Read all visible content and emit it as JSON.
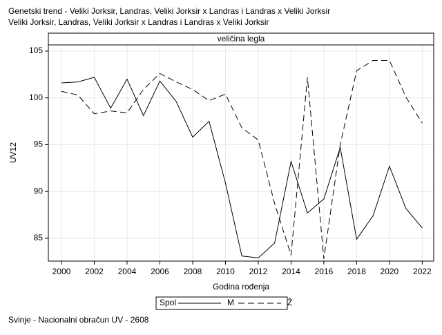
{
  "chart_data": {
    "type": "line",
    "title_lines": [
      "Genetski trend - Veliki Jorksir, Landras, Veliki Jorksir x Landras i Landras x Veliki Jorksir",
      "Veliki Jorksir, Landras, Veliki Jorksir x Landras i Landras x Veliki Jorksir"
    ],
    "panel_label": "veličina legla",
    "x_label": "Godina rođenja",
    "y_label": "UV12",
    "x": [
      2000,
      2001,
      2002,
      2003,
      2004,
      2005,
      2006,
      2007,
      2008,
      2009,
      2010,
      2011,
      2012,
      2013,
      2014,
      2015,
      2016,
      2017,
      2018,
      2019,
      2020,
      2021,
      2022
    ],
    "series": [
      {
        "name": "M",
        "color": "#000000",
        "line_style": "solid",
        "values": [
          101.6,
          101.7,
          102.2,
          98.9,
          102.0,
          98.1,
          101.8,
          99.6,
          95.8,
          97.5,
          90.9,
          83.1,
          82.9,
          84.5,
          93.2,
          87.7,
          89.2,
          94.7,
          84.9,
          87.4,
          92.7,
          88.2,
          86.1
        ]
      },
      {
        "name": "Ž",
        "color": "#000000",
        "line_style": "dashed",
        "values": [
          100.7,
          100.3,
          98.3,
          98.6,
          98.4,
          100.9,
          102.6,
          101.7,
          100.9,
          99.7,
          100.4,
          96.8,
          95.5,
          88.7,
          83.2,
          102.2,
          82.8,
          95.0,
          102.9,
          104.0,
          104.0,
          100.1,
          97.3
        ]
      }
    ],
    "legend_title": "Spol",
    "xlim": [
      1999.2,
      2022.7
    ],
    "ylim": [
      82.56,
      105.66
    ],
    "xticks": [
      2000,
      2002,
      2004,
      2006,
      2008,
      2010,
      2012,
      2014,
      2016,
      2018,
      2020,
      2022
    ],
    "yticks": [
      85,
      90,
      95,
      100,
      105
    ],
    "grid": true,
    "footnote": "Svinje - Nacionalni obračun UV - 2608"
  }
}
